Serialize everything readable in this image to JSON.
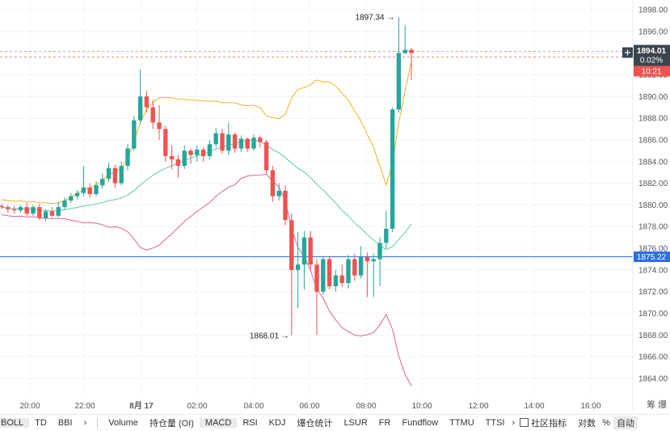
{
  "chart_data": {
    "type": "candlestick",
    "x_ticks": [
      "20:00",
      "22:00",
      "8月 17",
      "02:00",
      "04:00",
      "06:00",
      "08:00",
      "10:00",
      "12:00",
      "14:00",
      "16:00"
    ],
    "y_ticks": [
      "1898.00",
      "1896.00",
      "1894.00",
      "1892.00",
      "1890.00",
      "1888.00",
      "1886.00",
      "1884.00",
      "1882.00",
      "1880.00",
      "1878.00",
      "1876.00",
      "1874.00",
      "1872.00",
      "1870.00",
      "1868.00",
      "1866.00",
      "1864.00"
    ],
    "ylim": [
      1862.7,
      1899.4
    ],
    "candles": [
      [
        1879.9,
        1879.8,
        1880.1,
        1879.6
      ],
      [
        1879.8,
        1879.6,
        1880.0,
        1879.3
      ],
      [
        1879.6,
        1879.5,
        1879.9,
        1879.2
      ],
      [
        1879.5,
        1879.8,
        1880.0,
        1879.3
      ],
      [
        1879.8,
        1879.2,
        1880.2,
        1879.0
      ],
      [
        1879.2,
        1879.8,
        1880.0,
        1879.0
      ],
      [
        1879.8,
        1878.8,
        1880.1,
        1878.6
      ],
      [
        1878.8,
        1879.4,
        1879.6,
        1878.5
      ],
      [
        1879.4,
        1879.0,
        1879.8,
        1878.9
      ],
      [
        1879.0,
        1879.8,
        1880.3,
        1878.9
      ],
      [
        1879.8,
        1880.4,
        1880.7,
        1879.6
      ],
      [
        1880.4,
        1880.8,
        1881.1,
        1880.2
      ],
      [
        1880.8,
        1881.1,
        1881.4,
        1880.5
      ],
      [
        1881.1,
        1881.6,
        1883.6,
        1880.8
      ],
      [
        1881.6,
        1881.0,
        1882.0,
        1880.7
      ],
      [
        1881.0,
        1881.8,
        1882.2,
        1880.8
      ],
      [
        1881.8,
        1882.4,
        1882.9,
        1881.5
      ],
      [
        1882.4,
        1883.4,
        1883.9,
        1882.1
      ],
      [
        1883.4,
        1882.0,
        1883.7,
        1881.6
      ],
      [
        1882.0,
        1883.6,
        1884.0,
        1881.8
      ],
      [
        1883.6,
        1885.2,
        1885.6,
        1883.2
      ],
      [
        1885.2,
        1887.8,
        1888.2,
        1885.0
      ],
      [
        1887.8,
        1890.0,
        1892.5,
        1887.5
      ],
      [
        1890.0,
        1889.0,
        1890.5,
        1888.5
      ],
      [
        1889.0,
        1887.6,
        1889.7,
        1887.0
      ],
      [
        1887.6,
        1887.0,
        1889.2,
        1886.0
      ],
      [
        1887.0,
        1884.5,
        1887.3,
        1884.0
      ],
      [
        1884.5,
        1884.2,
        1885.5,
        1883.3
      ],
      [
        1884.2,
        1883.6,
        1884.6,
        1882.5
      ],
      [
        1883.6,
        1885.0,
        1885.5,
        1883.3
      ],
      [
        1885.0,
        1884.6,
        1885.2,
        1883.8
      ],
      [
        1884.6,
        1885.1,
        1885.5,
        1884.0
      ],
      [
        1885.1,
        1884.5,
        1885.3,
        1884.0
      ],
      [
        1884.5,
        1885.6,
        1886.0,
        1884.2
      ],
      [
        1885.6,
        1886.6,
        1887.1,
        1885.3
      ],
      [
        1886.6,
        1885.0,
        1887.0,
        1884.7
      ],
      [
        1885.0,
        1886.5,
        1887.6,
        1884.6
      ],
      [
        1886.5,
        1885.2,
        1886.7,
        1884.8
      ],
      [
        1885.2,
        1886.1,
        1886.4,
        1884.9
      ],
      [
        1886.1,
        1885.2,
        1886.2,
        1884.9
      ],
      [
        1885.2,
        1886.2,
        1886.5,
        1885.0
      ],
      [
        1886.2,
        1885.8,
        1886.4,
        1885.3
      ],
      [
        1885.8,
        1883.2,
        1886.0,
        1882.8
      ],
      [
        1883.2,
        1880.8,
        1883.6,
        1880.3
      ],
      [
        1880.8,
        1881.3,
        1882.0,
        1880.4
      ],
      [
        1881.3,
        1878.6,
        1881.8,
        1878.1
      ],
      [
        1878.6,
        1874.0,
        1879.2,
        1868.0
      ],
      [
        1874.0,
        1874.5,
        1877.5,
        1870.5
      ],
      [
        1874.5,
        1877.0,
        1877.6,
        1872.2
      ],
      [
        1877.0,
        1874.5,
        1877.6,
        1874.0
      ],
      [
        1874.5,
        1872.0,
        1875.0,
        1868.0
      ],
      [
        1872.0,
        1875.0,
        1875.3,
        1871.7
      ],
      [
        1875.0,
        1872.5,
        1875.3,
        1872.2
      ],
      [
        1872.5,
        1873.5,
        1874.0,
        1872.0
      ],
      [
        1873.5,
        1872.8,
        1874.5,
        1872.4
      ],
      [
        1872.8,
        1875.0,
        1875.4,
        1872.3
      ],
      [
        1875.0,
        1873.5,
        1875.5,
        1873.0
      ],
      [
        1873.5,
        1875.2,
        1876.2,
        1873.2
      ],
      [
        1875.2,
        1874.8,
        1875.6,
        1871.5
      ],
      [
        1874.8,
        1875.0,
        1875.5,
        1871.5
      ],
      [
        1875.0,
        1876.5,
        1877.0,
        1872.5
      ],
      [
        1876.5,
        1877.8,
        1879.5,
        1876.0
      ],
      [
        1877.8,
        1888.8,
        1889.0,
        1877.5
      ],
      [
        1888.8,
        1894.0,
        1897.3,
        1888.5
      ],
      [
        1894.0,
        1894.3,
        1896.6,
        1893.9
      ],
      [
        1894.3,
        1894.0,
        1894.5,
        1891.5
      ]
    ],
    "price_label": "1894.01",
    "change_label": "0.02%",
    "countdown_label": "10:21",
    "blue_line_label": "1875.22",
    "blue_line_value": 1875.22,
    "max_label": "1897.34",
    "min_label": "1868.01",
    "colors": {
      "up": "#26a69a",
      "down": "#ef5350",
      "upper_band": "#f0b322",
      "mid_band": "#5cc8b0",
      "lower_band": "#e0609a",
      "hline": "#2f6fe4"
    }
  },
  "toolbar": {
    "items": [
      "BOLL",
      "TD",
      "BBI",
      "›",
      "Volume",
      "持仓量 (OI)",
      "MACD",
      "RSI",
      "KDJ",
      "爆仓统计",
      "LSUR",
      "FR",
      "Fundflow",
      "TTMU",
      "TTSI",
      "›"
    ],
    "community": "社区指标",
    "log_label": "对数",
    "pct_label": "%",
    "auto_label": "自动",
    "right_top_chars": "筹 爆"
  }
}
